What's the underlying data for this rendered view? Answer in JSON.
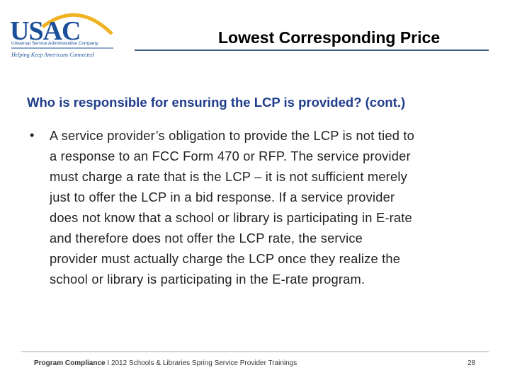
{
  "header": {
    "logo": {
      "name": "USAC",
      "tagline": "Universal Service Administrative Company",
      "slogan": "Helping Keep Americans Connected"
    },
    "title": "Lowest Corresponding Price"
  },
  "subtitle": "Who is responsible for ensuring the LCP is provided? (cont.)",
  "bullets": [
    {
      "marker": "•",
      "lines": [
        "A service provider’s obligation to provide the LCP is not tied to",
        "a response to an FCC Form 470 or RFP.  The service provider",
        "must charge a rate that is the LCP – it is not sufficient merely",
        "just to offer the LCP in a bid response.  If a service provider",
        "does not know that a school or library is participating in E-rate",
        "and therefore does not offer the LCP rate, the service",
        "provider must actually charge the LCP once they realize the",
        "school or library is participating in the E-rate program."
      ]
    }
  ],
  "footer": {
    "section": "Program Compliance",
    "separator": "I",
    "event": "2012 Schools & Libraries Spring Service Provider Trainings",
    "page": "28"
  }
}
